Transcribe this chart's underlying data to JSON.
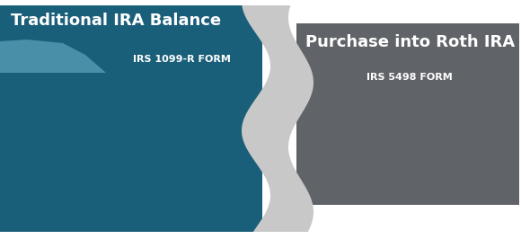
{
  "bg_color": "#ffffff",
  "left_dark_color": "#1a5f7a",
  "left_light_color": "#4a8fa8",
  "right_color": "#606368",
  "center_color": "#c8c8c8",
  "title_left": "Traditional IRA Balance",
  "subtitle_left": "IRS 1099-R FORM",
  "title_right": "Purchase into Roth IRA",
  "subtitle_right": "IRS 5498 FORM",
  "title_fontsize": 13,
  "subtitle_fontsize": 8
}
